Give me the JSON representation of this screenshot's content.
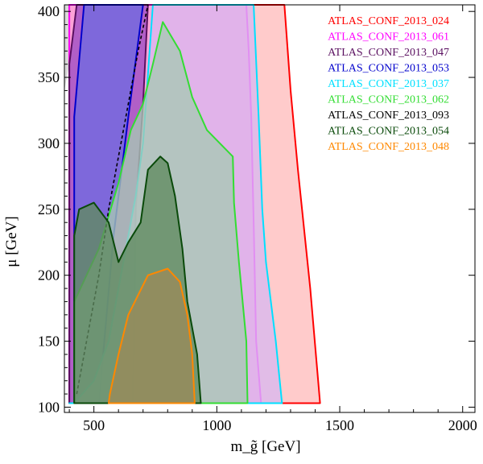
{
  "chart_data": {
    "type": "area",
    "title": "",
    "xlabel": "m_g̃ [GeV]",
    "ylabel": "μ [GeV]",
    "xlim": [
      380,
      2050
    ],
    "ylim": [
      96,
      405
    ],
    "xticks": [
      500,
      1000,
      1500,
      2000
    ],
    "yticks": [
      100,
      150,
      200,
      250,
      300,
      350,
      400
    ],
    "grid": false,
    "legend_position": "top-right",
    "excluded_corner": {
      "color": "#d9d9d9",
      "points": [
        [
          380,
          340
        ],
        [
          380,
          405
        ],
        [
          445,
          405
        ]
      ]
    },
    "series": [
      {
        "name": "ATLAS_CONF_2013_024",
        "color": "#ff0000",
        "fill": "#ffbcbc",
        "points": [
          [
            400,
            103
          ],
          [
            1420,
            103
          ],
          [
            1380,
            190
          ],
          [
            1330,
            280
          ],
          [
            1300,
            340
          ],
          [
            1275,
            405
          ],
          [
            400,
            405
          ]
        ]
      },
      {
        "name": "ATLAS_CONF_2013_061",
        "color": "#ff00ff",
        "fill": "#ff99dd",
        "points": [
          [
            400,
            103
          ],
          [
            1180,
            103
          ],
          [
            1160,
            150
          ],
          [
            1150,
            240
          ],
          [
            1140,
            320
          ],
          [
            1130,
            370
          ],
          [
            1120,
            405
          ],
          [
            400,
            405
          ]
        ]
      },
      {
        "name": "ATLAS_CONF_2013_047",
        "color": "#5a1060",
        "fill": "#9b4cc2",
        "points": [
          [
            400,
            103
          ],
          [
            660,
            103
          ],
          [
            670,
            250
          ],
          [
            700,
            330
          ],
          [
            720,
            405
          ],
          [
            430,
            405
          ],
          [
            400,
            360
          ]
        ]
      },
      {
        "name": "ATLAS_CONF_2013_053",
        "color": "#0000cc",
        "fill": "#6f6ae0",
        "points": [
          [
            420,
            103
          ],
          [
            520,
            103
          ],
          [
            580,
            230
          ],
          [
            640,
            320
          ],
          [
            700,
            405
          ],
          [
            460,
            405
          ],
          [
            420,
            320
          ]
        ]
      },
      {
        "name": "ATLAS_CONF_2013_037",
        "color": "#00e0ff",
        "fill": "#d9b7ee",
        "points": [
          [
            400,
            103
          ],
          [
            1265,
            103
          ],
          [
            1240,
            150
          ],
          [
            1200,
            210
          ],
          [
            1185,
            250
          ],
          [
            1170,
            320
          ],
          [
            1150,
            405
          ],
          [
            740,
            405
          ],
          [
            700,
            300
          ],
          [
            670,
            260
          ],
          [
            620,
            210
          ],
          [
            560,
            150
          ],
          [
            500,
            120
          ],
          [
            420,
            103
          ]
        ]
      },
      {
        "name": "ATLAS_CONF_2013_062",
        "color": "#33dd33",
        "fill": "#a6c9b4",
        "points": [
          [
            420,
            103
          ],
          [
            1125,
            103
          ],
          [
            1120,
            150
          ],
          [
            1090,
            210
          ],
          [
            1070,
            255
          ],
          [
            1065,
            290
          ],
          [
            960,
            310
          ],
          [
            900,
            335
          ],
          [
            850,
            370
          ],
          [
            780,
            392
          ],
          [
            740,
            360
          ],
          [
            700,
            330
          ],
          [
            650,
            310
          ],
          [
            600,
            270
          ],
          [
            520,
            220
          ],
          [
            420,
            180
          ]
        ]
      },
      {
        "name": "ATLAS_CONF_2013_093",
        "color": "#000000",
        "fill": "none",
        "points": [
          [
            430,
            110
          ],
          [
            470,
            150
          ],
          [
            520,
            200
          ],
          [
            560,
            250
          ],
          [
            600,
            290
          ],
          [
            640,
            330
          ],
          [
            680,
            370
          ],
          [
            720,
            405
          ]
        ]
      },
      {
        "name": "ATLAS_CONF_2013_054",
        "color": "#0a4a0a",
        "fill": "#5f8a5f",
        "points": [
          [
            420,
            103
          ],
          [
            935,
            103
          ],
          [
            920,
            140
          ],
          [
            880,
            180
          ],
          [
            860,
            220
          ],
          [
            830,
            260
          ],
          [
            800,
            285
          ],
          [
            770,
            290
          ],
          [
            720,
            280
          ],
          [
            690,
            240
          ],
          [
            640,
            225
          ],
          [
            600,
            210
          ],
          [
            560,
            240
          ],
          [
            500,
            255
          ],
          [
            440,
            250
          ],
          [
            420,
            230
          ]
        ]
      },
      {
        "name": "ATLAS_CONF_2013_048",
        "color": "#ff8800",
        "fill": "#9a8a5a",
        "points": [
          [
            560,
            103
          ],
          [
            910,
            103
          ],
          [
            900,
            140
          ],
          [
            880,
            170
          ],
          [
            850,
            195
          ],
          [
            800,
            205
          ],
          [
            720,
            200
          ],
          [
            640,
            170
          ],
          [
            600,
            140
          ],
          [
            565,
            110
          ]
        ]
      }
    ]
  }
}
